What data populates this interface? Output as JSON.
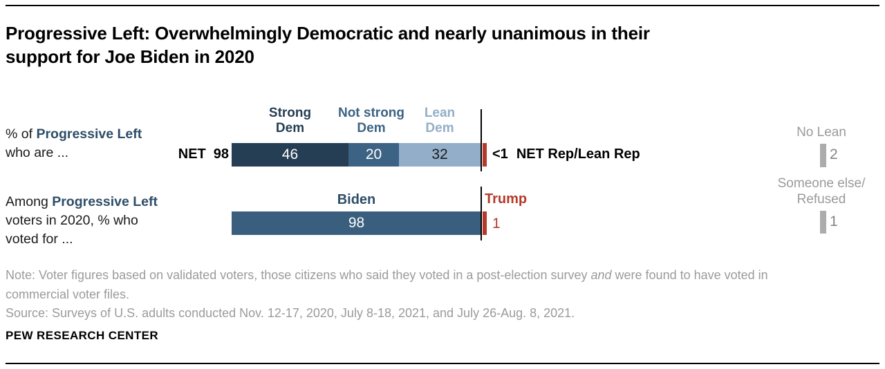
{
  "title": {
    "line1": "Progressive Left: Overwhelmingly Democratic and nearly unanimous in their",
    "line2": "support for Joe Biden in 2020"
  },
  "colors": {
    "strong_dem": "#253E54",
    "not_strong_dem": "#3D6384",
    "lean_dem": "#92AEC9",
    "biden_bar": "#3A5F7E",
    "republican_red": "#B5392B",
    "gray_bar": "#ACACAC",
    "gray_text": "#9A9A9A",
    "navy_text": "#2E4D68"
  },
  "row1": {
    "label_prefix": "% of ",
    "label_bold": "Progressive Left",
    "label_line2": "who are ...",
    "net_label": "NET",
    "net_value": "98",
    "headers": [
      {
        "line1": "Strong",
        "line2": "Dem"
      },
      {
        "line1": "Not strong",
        "line2": "Dem"
      },
      {
        "line1": "Lean",
        "line2": "Dem"
      }
    ],
    "segments": [
      {
        "label": "Strong Dem",
        "value": "46"
      },
      {
        "label": "Not strong Dem",
        "value": "20"
      },
      {
        "label": "Lean Dem",
        "value": "32"
      }
    ],
    "rep_value": "<1",
    "rep_label": "NET Rep/Lean Rep",
    "aside": {
      "label": "No Lean",
      "value": "2"
    }
  },
  "row2": {
    "label_prefix": "Among ",
    "label_bold": "Progressive Left",
    "label_line2": "voters in 2020, % who",
    "label_line3": "voted for ...",
    "bar_header": "Biden",
    "bar_value": "98",
    "rep_header": "Trump",
    "rep_value": "1",
    "aside": {
      "label_line1": "Someone else/",
      "label_line2": "Refused",
      "value": "1"
    }
  },
  "footer": {
    "note_line1_a": "Note: Voter figures based on validated voters, those citizens who said they voted in a post-election survey ",
    "note_italic": "and",
    "note_line1_b": " were found to have voted in",
    "note_line2": "commercial voter files.",
    "source": "Source: Surveys of U.S. adults conducted Nov. 12-17, 2020, July 8-18, 2021, and July 26-Aug. 8, 2021.",
    "brand": "PEW RESEARCH CENTER"
  },
  "chart_data": [
    {
      "type": "bar",
      "orientation": "horizontal",
      "stacked": true,
      "title": "% of Progressive Left who are ...",
      "categories": [
        "Strong Dem",
        "Not strong Dem",
        "Lean Dem",
        "NET Rep/Lean Rep",
        "No Lean"
      ],
      "values": [
        46,
        20,
        32,
        0.5,
        2
      ],
      "value_labels": [
        "46",
        "20",
        "32",
        "<1",
        "2"
      ],
      "net_dem_label": "NET",
      "net_dem_value": 98,
      "xlim": [
        0,
        100
      ],
      "grid": false,
      "legend_position": "above-segments"
    },
    {
      "type": "bar",
      "orientation": "horizontal",
      "stacked": false,
      "title": "Among Progressive Left voters in 2020, % who voted for ...",
      "categories": [
        "Biden",
        "Trump",
        "Someone else/Refused"
      ],
      "values": [
        98,
        1,
        1
      ],
      "value_labels": [
        "98",
        "1",
        "1"
      ],
      "xlim": [
        0,
        100
      ],
      "grid": false,
      "legend_position": "above-bars"
    }
  ]
}
